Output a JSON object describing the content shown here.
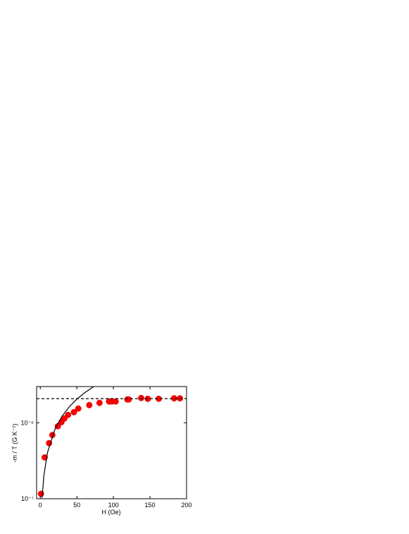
{
  "chart_data": {
    "type": "scatter",
    "x_label": "H (Oe)",
    "y_label": "-m / T (G K⁻¹)",
    "xlim": [
      -5,
      200
    ],
    "xticks": [
      0,
      50,
      100,
      150,
      200
    ],
    "ylim": [
      1e-07,
      3e-06
    ],
    "yticks": [
      {
        "value": 1e-07,
        "label": "10⁻⁷"
      },
      {
        "value": 1e-06,
        "label": "10⁻⁶"
      }
    ],
    "y_scale": "log",
    "series": [
      {
        "style": "markers",
        "color": "#ff0000",
        "x": [
          1,
          6,
          12,
          16.5,
          24,
          29,
          33,
          38,
          46,
          52,
          67,
          81,
          94,
          98,
          103,
          119,
          121,
          138,
          147,
          162,
          183,
          191
        ],
        "values": [
          1.16e-07,
          3.5e-07,
          5.4e-07,
          6.9e-07,
          9e-07,
          1.02e-06,
          1.14e-06,
          1.27e-06,
          1.38e-06,
          1.54e-06,
          1.71e-06,
          1.83e-06,
          1.91e-06,
          1.91e-06,
          1.91e-06,
          2.03e-06,
          2.03e-06,
          2.12e-06,
          2.07e-06,
          2.07e-06,
          2.1e-06,
          2.1e-06
        ]
      },
      {
        "style": "solid",
        "color": "#000000",
        "x": [
          2.5,
          5,
          10,
          20,
          30,
          40,
          50,
          60,
          73
        ],
        "values": [
          1.03e-07,
          2.05e-07,
          4.1e-07,
          8.2e-07,
          1.23e-06,
          1.64e-06,
          2.05e-06,
          2.46e-06,
          3e-06
        ]
      },
      {
        "style": "dashed",
        "color": "#000000",
        "x": [
          -5,
          200
        ],
        "values": [
          2.08e-06,
          2.08e-06
        ]
      }
    ]
  }
}
